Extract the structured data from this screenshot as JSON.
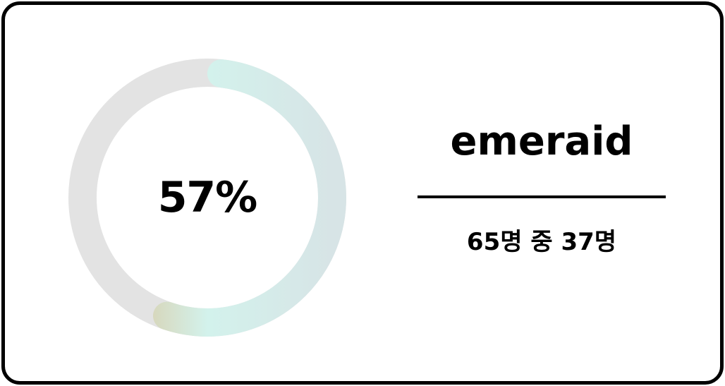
{
  "progress": {
    "percent_text": "57%",
    "fraction": 0.57,
    "track_color": "#e3e3e3",
    "gradient_colors": [
      "#dcb680",
      "#d3f2ec",
      "#d7e4e6"
    ]
  },
  "summary": {
    "label": "emeraid",
    "count_text": "65명 중 37명"
  }
}
